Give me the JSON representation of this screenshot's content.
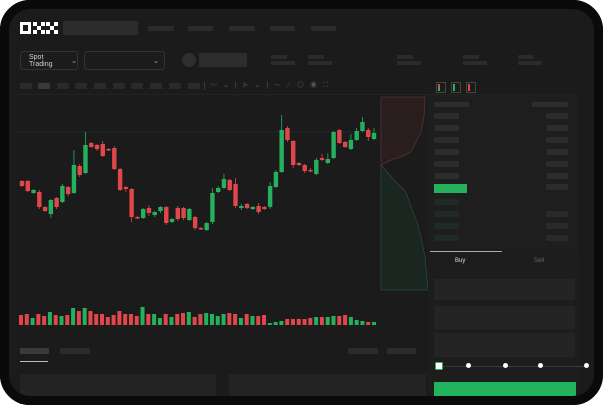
{
  "header": {
    "logo": "OKX"
  },
  "toolbar": {
    "market_selector": "Spot Trading",
    "pair_selector": ""
  },
  "order_form": {
    "tabs": [
      "Buy",
      "Sell"
    ],
    "active_tab": "Buy",
    "slider_percent": 0,
    "slider_marks": 5
  },
  "colors": {
    "up": "#25b05e",
    "down": "#e0474c",
    "background": "#1b1b1b",
    "buy_button": "#22b35e"
  },
  "orderbook": {
    "view_icons": [
      "orderbook-both-icon",
      "orderbook-bids-icon",
      "orderbook-asks-icon"
    ]
  },
  "chart_data": {
    "type": "candlestick",
    "candles": [
      [
        59,
        60,
        53,
        54
      ],
      [
        59,
        60,
        48,
        49
      ],
      [
        47,
        51,
        46,
        50
      ],
      [
        48,
        50,
        31,
        33
      ],
      [
        33,
        34,
        28,
        29
      ],
      [
        26,
        41,
        22,
        40
      ],
      [
        42,
        43,
        31,
        33
      ],
      [
        38,
        56,
        37,
        54
      ],
      [
        53,
        54,
        44,
        46
      ],
      [
        47,
        90,
        46,
        75
      ],
      [
        74,
        76,
        63,
        65
      ],
      [
        67,
        108,
        66,
        95
      ],
      [
        97,
        98,
        92,
        93
      ],
      [
        95,
        96,
        89,
        91
      ],
      [
        96,
        99,
        83,
        84
      ],
      [
        91,
        92,
        89,
        90
      ],
      [
        92,
        94,
        70,
        71
      ],
      [
        71,
        72,
        49,
        50
      ],
      [
        53,
        54,
        48,
        51
      ],
      [
        51,
        52,
        18,
        23
      ],
      [
        23,
        24,
        21,
        22
      ],
      [
        22,
        32,
        21,
        31
      ],
      [
        32,
        35,
        24,
        27
      ],
      [
        25,
        29,
        23,
        28
      ],
      [
        29,
        34,
        27,
        33
      ],
      [
        33,
        34,
        15,
        17
      ],
      [
        18,
        22,
        17,
        21
      ],
      [
        32,
        34,
        19,
        21
      ],
      [
        32,
        33,
        20,
        22
      ],
      [
        20,
        32,
        19,
        31
      ],
      [
        23,
        24,
        10,
        12
      ],
      [
        12,
        13,
        10,
        11
      ],
      [
        10,
        18,
        9,
        17
      ],
      [
        18,
        52,
        16,
        47
      ],
      [
        48,
        54,
        47,
        52
      ],
      [
        52,
        66,
        51,
        61
      ],
      [
        60,
        61,
        49,
        50
      ],
      [
        56,
        62,
        32,
        34
      ],
      [
        32,
        36,
        30,
        34
      ],
      [
        36,
        37,
        31,
        32
      ],
      [
        31,
        34,
        30,
        33
      ],
      [
        34,
        37,
        26,
        28
      ],
      [
        33,
        34,
        30,
        31
      ],
      [
        33,
        58,
        31,
        54
      ],
      [
        53,
        70,
        52,
        68
      ],
      [
        68,
        125,
        67,
        110
      ],
      [
        112,
        114,
        98,
        100
      ],
      [
        99,
        100,
        72,
        75
      ],
      [
        77,
        78,
        74,
        75
      ],
      [
        75,
        76,
        67,
        69
      ],
      [
        70,
        72,
        68,
        69
      ],
      [
        66,
        82,
        65,
        80
      ],
      [
        82,
        86,
        79,
        80
      ],
      [
        77,
        87,
        76,
        81
      ],
      [
        82,
        109,
        81,
        108
      ],
      [
        110,
        111,
        96,
        97
      ],
      [
        98,
        99,
        92,
        93
      ],
      [
        91,
        106,
        90,
        100
      ],
      [
        100,
        112,
        99,
        109
      ],
      [
        109,
        123,
        108,
        118
      ],
      [
        110,
        112,
        99,
        103
      ],
      [
        101,
        112,
        100,
        107
      ]
    ],
    "candle_fields": [
      "open",
      "high",
      "low",
      "close"
    ],
    "volumes": [
      10,
      11,
      7,
      11,
      9,
      13,
      10,
      9,
      10,
      17,
      14,
      17,
      14,
      11,
      11,
      8,
      10,
      14,
      11,
      11,
      9,
      18,
      11,
      11,
      7,
      11,
      8,
      11,
      12,
      13,
      8,
      11,
      12,
      11,
      9,
      11,
      12,
      11,
      7,
      11,
      9,
      9,
      10,
      2,
      3,
      4,
      6,
      6,
      6,
      6,
      7,
      8,
      8,
      8,
      9,
      9,
      10,
      8,
      5,
      4,
      3,
      3
    ]
  }
}
